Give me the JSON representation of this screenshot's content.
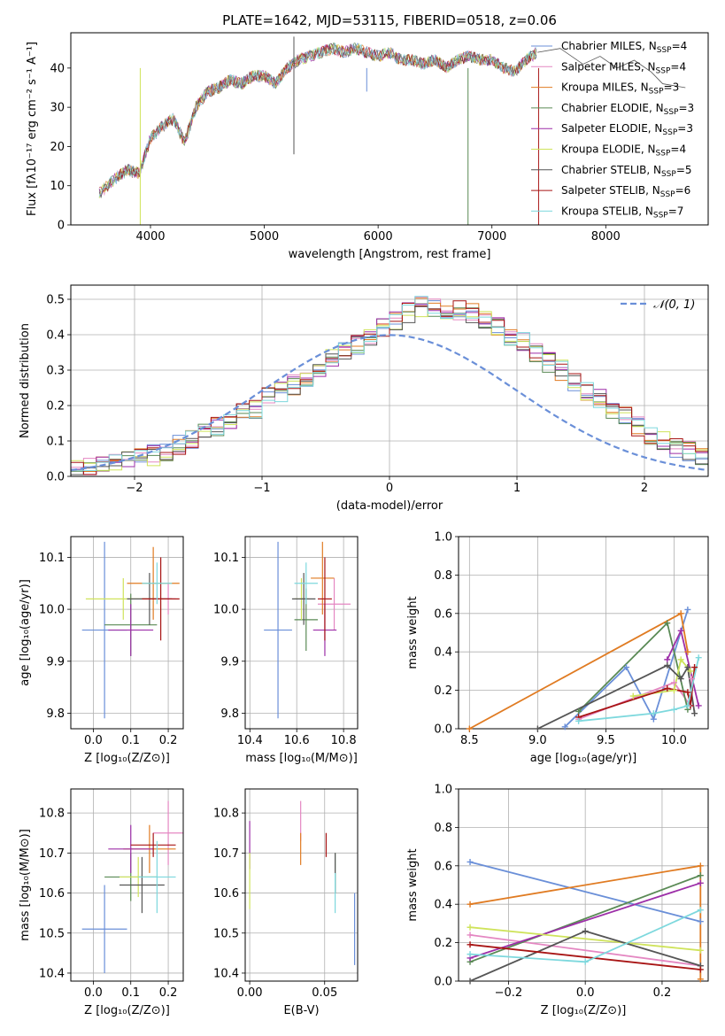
{
  "colors": {
    "Chabrier MILES": "#6a8fd8",
    "Salpeter MILES": "#e487c2",
    "Kroupa MILES": "#e07b22",
    "Chabrier ELODIE": "#5a8a55",
    "Salpeter ELODIE": "#9d2fa8",
    "Kroupa ELODIE": "#cfe35b",
    "Chabrier STELIB": "#555555",
    "Salpeter STELIB": "#a81515",
    "Kroupa STELIB": "#7dd8dd",
    "normal": "#6a8fd8",
    "grid": "#b0b0b0"
  },
  "chart_data": [
    {
      "id": "spectrum",
      "type": "line",
      "title": "PLATE=1642, MJD=53115, FIBERID=0518, z=0.06",
      "xlabel": "wavelength [Angstrom, rest frame]",
      "ylabel": "Flux [fλ10⁻¹⁷ erg cm⁻² s⁻¹ A⁻¹]",
      "xlim": [
        3300,
        8900
      ],
      "ylim": [
        0,
        49
      ],
      "xticks": [
        4000,
        5000,
        6000,
        7000,
        8000
      ],
      "yticks": [
        0,
        10,
        20,
        30,
        40
      ],
      "grid": false,
      "legend_position": "right",
      "legend": [
        {
          "base": "Chabrier MILES, N",
          "sub": "SSP",
          "tail": "=4"
        },
        {
          "base": "Salpeter MILES, N",
          "sub": "SSP",
          "tail": "=4"
        },
        {
          "base": "Kroupa MILES, N",
          "sub": "SSP",
          "tail": "=3"
        },
        {
          "base": "Chabrier ELODIE, N",
          "sub": "SSP",
          "tail": "=3"
        },
        {
          "base": "Salpeter ELODIE, N",
          "sub": "SSP",
          "tail": "=3"
        },
        {
          "base": "Kroupa ELODIE, N",
          "sub": "SSP",
          "tail": "=4"
        },
        {
          "base": "Chabrier STELIB, N",
          "sub": "SSP",
          "tail": "=5"
        },
        {
          "base": "Salpeter STELIB, N",
          "sub": "SSP",
          "tail": "=6"
        },
        {
          "base": "Kroupa STELIB, N",
          "sub": "SSP",
          "tail": "=7"
        }
      ],
      "series": [
        {
          "name": "Chabrier MILES",
          "x": [
            3550,
            3700,
            3800,
            3900,
            4000,
            4100,
            4200,
            4300,
            4400,
            4500,
            4600,
            4700,
            4800,
            4900,
            5000,
            5100,
            5200,
            5300,
            5400,
            5500,
            5600,
            5700,
            5800,
            5900,
            6000,
            6100,
            6200,
            6300,
            6400,
            6500,
            6600,
            6700,
            6800,
            6900,
            7000,
            7100,
            7200,
            7300,
            7400
          ],
          "y": [
            8,
            12,
            14,
            13,
            22,
            25,
            27,
            21,
            30,
            34,
            35,
            37,
            36,
            38,
            38,
            36,
            40,
            42,
            43,
            44,
            45,
            44,
            45,
            44,
            43,
            44,
            42,
            42,
            41,
            42,
            40,
            42,
            43,
            42,
            42,
            40,
            39,
            42,
            44
          ]
        },
        {
          "name": "Chabrier STELIB",
          "x": [
            7400,
            7600,
            7800,
            7950,
            8100,
            8250,
            8400,
            8500,
            8700
          ],
          "y": [
            44,
            45,
            41,
            43,
            40,
            42,
            39,
            36,
            35
          ]
        }
      ],
      "spikes": [
        {
          "x": 3910,
          "y": 0,
          "series": "Kroupa ELODIE"
        },
        {
          "x": 5260,
          "y": 48,
          "series": "Chabrier STELIB"
        },
        {
          "x": 5260,
          "y": 18,
          "series": "Chabrier STELIB"
        },
        {
          "x": 5900,
          "y": 34,
          "series": "Chabrier MILES"
        },
        {
          "x": 6790,
          "y": 0,
          "series": "Chabrier ELODIE"
        },
        {
          "x": 7410,
          "y": 0,
          "series": "Salpeter STELIB"
        }
      ]
    },
    {
      "id": "residuals",
      "type": "area",
      "xlabel": "(data-model)/error",
      "ylabel": "Normed distribution",
      "xlim": [
        -2.5,
        2.5
      ],
      "ylim": [
        0,
        0.54
      ],
      "xticks": [
        -2,
        -1,
        0,
        1,
        2
      ],
      "yticks": [
        0.0,
        0.1,
        0.2,
        0.3,
        0.4,
        0.5
      ],
      "grid": true,
      "legend_position": "upper-right",
      "normal_label": "𝒩(0, 1)",
      "bin_width": 0.1,
      "bin_edges_start": -2.5,
      "histograms": [
        {
          "name": "Chabrier MILES",
          "values": [
            0.02,
            0.03,
            0.03,
            0.04,
            0.04,
            0.05,
            0.06,
            0.07,
            0.09,
            0.1,
            0.12,
            0.14,
            0.16,
            0.18,
            0.19,
            0.22,
            0.24,
            0.26,
            0.28,
            0.31,
            0.33,
            0.35,
            0.37,
            0.4,
            0.42,
            0.44,
            0.46,
            0.48,
            0.48,
            0.47,
            0.47,
            0.46,
            0.44,
            0.42,
            0.4,
            0.38,
            0.35,
            0.32,
            0.3,
            0.27,
            0.24,
            0.22,
            0.19,
            0.17,
            0.14,
            0.12,
            0.1,
            0.08,
            0.07,
            0.05
          ]
        }
      ]
    },
    {
      "id": "age-vs-Z",
      "type": "scatter",
      "xlabel": "Z [log₁₀(Z/Z⊙)]",
      "ylabel": "age  [log₁₀(age/yr)]",
      "xlim": [
        -0.06,
        0.24
      ],
      "ylim": [
        9.77,
        10.14
      ],
      "xticks": [
        0.0,
        0.1,
        0.2
      ],
      "yticks": [
        9.8,
        9.9,
        10.0,
        10.1
      ],
      "grid": true,
      "points": [
        {
          "series": "Chabrier MILES",
          "x": 0.03,
          "y": 9.96,
          "xerr": 0.06,
          "yerr": 0.17
        },
        {
          "series": "Salpeter MILES",
          "x": 0.2,
          "y": 10.02,
          "xerr": 0.02,
          "yerr": 0.03
        },
        {
          "series": "Kroupa MILES",
          "x": 0.16,
          "y": 10.05,
          "xerr": 0.07,
          "yerr": 0.07
        },
        {
          "series": "Chabrier ELODIE",
          "x": 0.1,
          "y": 9.97,
          "xerr": 0.07,
          "yerr": 0.06
        },
        {
          "series": "Salpeter ELODIE",
          "x": 0.1,
          "y": 9.96,
          "xerr": 0.06,
          "yerr": 0.05
        },
        {
          "series": "Kroupa ELODIE",
          "x": 0.08,
          "y": 10.02,
          "xerr": 0.1,
          "yerr": 0.04
        },
        {
          "series": "Chabrier STELIB",
          "x": 0.15,
          "y": 10.02,
          "xerr": 0.06,
          "yerr": 0.05
        },
        {
          "series": "Salpeter STELIB",
          "x": 0.18,
          "y": 10.02,
          "xerr": 0.05,
          "yerr": 0.08
        },
        {
          "series": "Kroupa STELIB",
          "x": 0.17,
          "y": 10.05,
          "xerr": 0.04,
          "yerr": 0.04
        }
      ]
    },
    {
      "id": "age-vs-mass",
      "type": "scatter",
      "xlabel": "mass [log₁₀(M/M⊙)]",
      "ylabel": "",
      "xlim": [
        10.38,
        10.86
      ],
      "ylim": [
        9.77,
        10.14
      ],
      "xticks": [
        10.4,
        10.6,
        10.8
      ],
      "yticks": [
        9.8,
        9.9,
        10.0,
        10.1
      ],
      "grid": true,
      "points": [
        {
          "series": "Chabrier MILES",
          "x": 10.52,
          "y": 9.96,
          "xerr": 0.06,
          "yerr": 0.17
        },
        {
          "series": "Salpeter MILES",
          "x": 10.76,
          "y": 10.01,
          "xerr": 0.07,
          "yerr": 0.05
        },
        {
          "series": "Kroupa MILES",
          "x": 10.71,
          "y": 10.06,
          "xerr": 0.05,
          "yerr": 0.07
        },
        {
          "series": "Chabrier ELODIE",
          "x": 10.64,
          "y": 9.98,
          "xerr": 0.05,
          "yerr": 0.06
        },
        {
          "series": "Salpeter ELODIE",
          "x": 10.72,
          "y": 9.96,
          "xerr": 0.05,
          "yerr": 0.05
        },
        {
          "series": "Kroupa ELODIE",
          "x": 10.62,
          "y": 10.02,
          "xerr": 0.03,
          "yerr": 0.04
        },
        {
          "series": "Chabrier STELIB",
          "x": 10.63,
          "y": 10.02,
          "xerr": 0.05,
          "yerr": 0.05
        },
        {
          "series": "Salpeter STELIB",
          "x": 10.72,
          "y": 10.02,
          "xerr": 0.03,
          "yerr": 0.08
        },
        {
          "series": "Kroupa STELIB",
          "x": 10.64,
          "y": 10.05,
          "xerr": 0.05,
          "yerr": 0.04
        }
      ]
    },
    {
      "id": "weight-vs-age",
      "type": "line",
      "xlabel": "age  [log₁₀(age/yr)]",
      "ylabel": "mass weight",
      "xlim": [
        8.42,
        10.25
      ],
      "ylim": [
        0,
        1.0
      ],
      "xticks": [
        8.5,
        9.0,
        9.5,
        10.0
      ],
      "yticks": [
        0.0,
        0.2,
        0.4,
        0.6,
        0.8,
        1.0
      ],
      "grid": true,
      "series": [
        {
          "name": "Chabrier MILES",
          "x": [
            9.2,
            9.65,
            9.85,
            10.1
          ],
          "y": [
            0.01,
            0.32,
            0.05,
            0.62
          ]
        },
        {
          "name": "Salpeter MILES",
          "x": [
            9.3,
            10.0,
            10.12,
            10.13
          ],
          "y": [
            0.05,
            0.24,
            0.12,
            0.26
          ]
        },
        {
          "name": "Kroupa MILES",
          "x": [
            8.5,
            10.05,
            10.1
          ],
          "y": [
            0.0,
            0.6,
            0.4
          ]
        },
        {
          "name": "Chabrier ELODIE",
          "x": [
            9.3,
            9.95,
            10.1
          ],
          "y": [
            0.09,
            0.55,
            0.1
          ]
        },
        {
          "name": "Salpeter ELODIE",
          "x": [
            9.95,
            10.05,
            10.18
          ],
          "y": [
            0.36,
            0.51,
            0.12
          ]
        },
        {
          "name": "Kroupa ELODIE",
          "x": [
            9.7,
            10.0,
            10.05,
            10.12
          ],
          "y": [
            0.17,
            0.2,
            0.36,
            0.3
          ]
        },
        {
          "name": "Chabrier STELIB",
          "x": [
            9.0,
            9.95,
            10.05,
            10.1,
            10.15
          ],
          "y": [
            0.0,
            0.33,
            0.26,
            0.32,
            0.08
          ]
        },
        {
          "name": "Salpeter STELIB",
          "x": [
            9.3,
            9.95,
            10.1,
            10.12,
            10.15
          ],
          "y": [
            0.06,
            0.21,
            0.19,
            0.12,
            0.32
          ]
        },
        {
          "name": "Kroupa STELIB",
          "x": [
            9.3,
            9.85,
            10.0,
            10.1,
            10.18
          ],
          "y": [
            0.04,
            0.08,
            0.1,
            0.12,
            0.37
          ]
        }
      ]
    },
    {
      "id": "mass-vs-Z",
      "type": "scatter",
      "xlabel": "Z [log₁₀(Z/Z⊙)]",
      "ylabel": "mass [log₁₀(M/M⊙)]",
      "xlim": [
        -0.06,
        0.24
      ],
      "ylim": [
        10.38,
        10.86
      ],
      "xticks": [
        0.0,
        0.1,
        0.2
      ],
      "yticks": [
        10.4,
        10.5,
        10.6,
        10.7,
        10.8
      ],
      "grid": true,
      "points": [
        {
          "series": "Chabrier MILES",
          "x": 0.03,
          "y": 10.51,
          "xerr": 0.06,
          "yerr": 0.11
        },
        {
          "series": "Salpeter MILES",
          "x": 0.2,
          "y": 10.75,
          "xerr": 0.04,
          "yerr": 0.08
        },
        {
          "series": "Kroupa MILES",
          "x": 0.15,
          "y": 10.71,
          "xerr": 0.07,
          "yerr": 0.06
        },
        {
          "series": "Chabrier ELODIE",
          "x": 0.1,
          "y": 10.64,
          "xerr": 0.07,
          "yerr": 0.06
        },
        {
          "series": "Salpeter ELODIE",
          "x": 0.1,
          "y": 10.71,
          "xerr": 0.06,
          "yerr": 0.06
        },
        {
          "series": "Kroupa ELODIE",
          "x": 0.12,
          "y": 10.64,
          "xerr": 0.05,
          "yerr": 0.05
        },
        {
          "series": "Chabrier STELIB",
          "x": 0.13,
          "y": 10.62,
          "xerr": 0.06,
          "yerr": 0.07
        },
        {
          "series": "Salpeter STELIB",
          "x": 0.16,
          "y": 10.72,
          "xerr": 0.06,
          "yerr": 0.03
        },
        {
          "series": "Kroupa STELIB",
          "x": 0.17,
          "y": 10.64,
          "xerr": 0.05,
          "yerr": 0.09
        }
      ]
    },
    {
      "id": "mass-vs-ebv",
      "type": "scatter",
      "xlabel": "E(B-V)",
      "ylabel": "",
      "xlim": [
        -0.003,
        0.072
      ],
      "ylim": [
        10.38,
        10.86
      ],
      "xticks": [
        0.0,
        0.05
      ],
      "yticks": [
        10.4,
        10.5,
        10.6,
        10.7,
        10.8
      ],
      "grid": true,
      "points": [
        {
          "series": "Chabrier MILES",
          "x": 0.07,
          "y": 10.51,
          "xerr": 0,
          "yerr": 0.09
        },
        {
          "series": "Salpeter MILES",
          "x": 0.034,
          "y": 10.78,
          "xerr": 0,
          "yerr": 0.05
        },
        {
          "series": "Kroupa MILES",
          "x": 0.034,
          "y": 10.71,
          "xerr": 0,
          "yerr": 0.04
        },
        {
          "series": "Chabrier ELODIE",
          "x": 0.057,
          "y": 10.65,
          "xerr": 0,
          "yerr": 0.05
        },
        {
          "series": "Salpeter ELODIE",
          "x": 0.0,
          "y": 10.72,
          "xerr": 0,
          "yerr": 0.06
        },
        {
          "series": "Kroupa ELODIE",
          "x": 0.0,
          "y": 10.63,
          "xerr": 0,
          "yerr": 0.07
        },
        {
          "series": "Chabrier STELIB",
          "x": 0.057,
          "y": 10.65,
          "xerr": 0,
          "yerr": 0.05
        },
        {
          "series": "Salpeter STELIB",
          "x": 0.051,
          "y": 10.72,
          "xerr": 0,
          "yerr": 0.03
        },
        {
          "series": "Kroupa STELIB",
          "x": 0.057,
          "y": 10.6,
          "xerr": 0,
          "yerr": 0.05
        }
      ]
    },
    {
      "id": "weight-vs-Z",
      "type": "line",
      "xlabel": "Z [log₁₀(Z/Z⊙)]",
      "ylabel": "mass weight",
      "xlim": [
        -0.33,
        0.32
      ],
      "ylim": [
        0,
        1.0
      ],
      "xticks": [
        -0.2,
        0.0,
        0.2
      ],
      "yticks": [
        0.0,
        0.2,
        0.4,
        0.6,
        0.8,
        1.0
      ],
      "grid": true,
      "series": [
        {
          "name": "Chabrier MILES",
          "x": [
            -0.3,
            0.3
          ],
          "y": [
            0.62,
            0.31
          ]
        },
        {
          "name": "Salpeter MILES",
          "x": [
            -0.3,
            0.3
          ],
          "y": [
            0.24,
            0.08
          ]
        },
        {
          "name": "Kroupa MILES",
          "x": [
            -0.3,
            0.3,
            0.3
          ],
          "y": [
            0.4,
            0.6,
            0.01
          ]
        },
        {
          "name": "Chabrier ELODIE",
          "x": [
            -0.3,
            0.3
          ],
          "y": [
            0.1,
            0.55
          ]
        },
        {
          "name": "Salpeter ELODIE",
          "x": [
            -0.3,
            0.3
          ],
          "y": [
            0.12,
            0.51
          ]
        },
        {
          "name": "Kroupa ELODIE",
          "x": [
            -0.3,
            0.3
          ],
          "y": [
            0.28,
            0.16
          ]
        },
        {
          "name": "Chabrier STELIB",
          "x": [
            -0.3,
            0.0,
            0.3
          ],
          "y": [
            0.0,
            0.26,
            0.08
          ]
        },
        {
          "name": "Salpeter STELIB",
          "x": [
            -0.3,
            0.3
          ],
          "y": [
            0.19,
            0.06
          ]
        },
        {
          "name": "Kroupa STELIB",
          "x": [
            -0.3,
            0.0,
            0.3
          ],
          "y": [
            0.14,
            0.1,
            0.37
          ]
        }
      ]
    }
  ]
}
